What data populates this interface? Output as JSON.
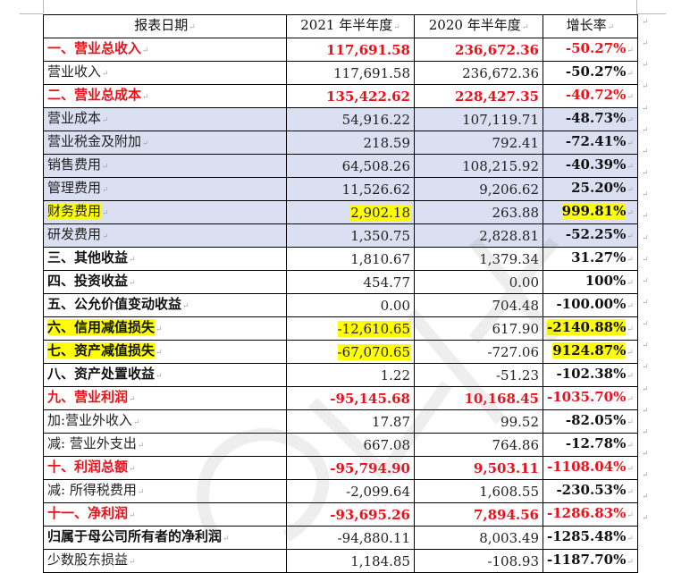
{
  "table": {
    "headers": [
      "报表日期",
      "2021 年半年度",
      "2020 年半年度",
      "增长率"
    ],
    "rows": [
      {
        "name": "一、营业总收入",
        "v2021": "117,691.58",
        "v2020": "236,672.36",
        "growth": "-50.27%",
        "style": "red"
      },
      {
        "name": "营业收入",
        "v2021": "117,691.58",
        "v2020": "236,672.36",
        "growth": "-50.27%",
        "style": "normal"
      },
      {
        "name": "二、营业总成本",
        "v2021": "135,422.62",
        "v2020": "228,427.35",
        "growth": "-40.72%",
        "style": "red"
      },
      {
        "name": "营业成本",
        "v2021": "54,916.22",
        "v2020": "107,119.71",
        "growth": "-48.73%",
        "style": "shade"
      },
      {
        "name": "营业税金及附加",
        "v2021": "218.59",
        "v2020": "792.41",
        "growth": "-72.41%",
        "style": "shade"
      },
      {
        "name": "销售费用",
        "v2021": "64,508.26",
        "v2020": "108,215.92",
        "growth": "-40.39%",
        "style": "shade"
      },
      {
        "name": "管理费用",
        "v2021": "11,526.62",
        "v2020": "9,206.62",
        "growth": "25.20%",
        "style": "shade"
      },
      {
        "name": "财务费用",
        "v2021": "2,902.18",
        "v2020": "263.88",
        "growth": "999.81%",
        "style": "shade",
        "highlight": [
          "name",
          "v2021",
          "growth"
        ]
      },
      {
        "name": "研发费用",
        "v2021": "1,350.75",
        "v2020": "2,828.81",
        "growth": "-52.25%",
        "style": "shade"
      },
      {
        "name": "三、其他收益",
        "v2021": "1,810.67",
        "v2020": "1,379.34",
        "growth": "31.27%",
        "style": "bold"
      },
      {
        "name": "四、投资收益",
        "v2021": "454.77",
        "v2020": "0.00",
        "growth": "100%",
        "style": "bold"
      },
      {
        "name": "五、公允价值变动收益",
        "v2021": "0.00",
        "v2020": "704.48",
        "growth": "-100.00%",
        "style": "bold"
      },
      {
        "name": "六、信用减值损失",
        "v2021": "-12,610.65",
        "v2020": "617.90",
        "growth": "-2140.88%",
        "style": "bold",
        "highlight": [
          "name",
          "v2021",
          "growth"
        ]
      },
      {
        "name": "七、资产减值损失",
        "v2021": "-67,070.65",
        "v2020": "-727.06",
        "growth": "9124.87%",
        "style": "bold",
        "highlight": [
          "name",
          "v2021",
          "growth"
        ]
      },
      {
        "name": "八、资产处置收益",
        "v2021": "1.22",
        "v2020": "-51.23",
        "growth": "-102.38%",
        "style": "bold"
      },
      {
        "name": "九、营业利润",
        "v2021": "-95,145.68",
        "v2020": "10,168.45",
        "growth": "-1035.70%",
        "style": "red"
      },
      {
        "name": "加:营业外收入",
        "v2021": "17.87",
        "v2020": "99.52",
        "growth": "-82.05%",
        "style": "normal"
      },
      {
        "name": "减: 营业外支出",
        "v2021": "667.08",
        "v2020": "764.86",
        "growth": "-12.78%",
        "style": "normal"
      },
      {
        "name": "十、利润总额",
        "v2021": "-95,794.90",
        "v2020": "9,503.11",
        "growth": "-1108.04%",
        "style": "red"
      },
      {
        "name": "减: 所得税费用",
        "v2021": "-2,099.64",
        "v2020": "1,608.55",
        "growth": "-230.53%",
        "style": "normal"
      },
      {
        "name": "十一、净利润",
        "v2021": "-93,695.26",
        "v2020": "7,894.56",
        "growth": "-1286.83%",
        "style": "red"
      },
      {
        "name": "归属于母公司所有者的净利润",
        "v2021": "-94,880.11",
        "v2020": "8,003.49",
        "growth": "-1285.48%",
        "style": "bold"
      },
      {
        "name": "少数股东损益",
        "v2021": "1,184.85",
        "v2020": "-108.93",
        "growth": "-1187.70%",
        "style": "normal"
      }
    ]
  },
  "colors": {
    "accent_red": "#e8121b",
    "shade_blue": "#dae0f1",
    "highlight_yellow": "#ffff00"
  },
  "marks": {
    "paragraph": "↵"
  }
}
